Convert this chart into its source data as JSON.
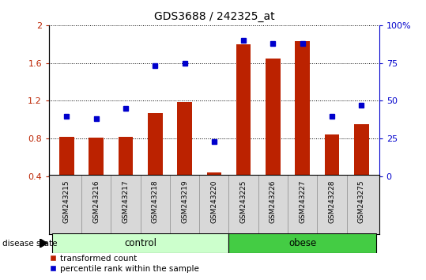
{
  "title": "GDS3688 / 242325_at",
  "samples": [
    "GSM243215",
    "GSM243216",
    "GSM243217",
    "GSM243218",
    "GSM243219",
    "GSM243220",
    "GSM243225",
    "GSM243226",
    "GSM243227",
    "GSM243228",
    "GSM243275"
  ],
  "red_values": [
    0.82,
    0.81,
    0.82,
    1.07,
    1.19,
    0.44,
    1.8,
    1.65,
    1.83,
    0.84,
    0.95
  ],
  "blue_percentile": [
    40,
    38,
    45,
    73,
    75,
    23,
    90,
    88,
    88,
    40,
    47
  ],
  "ylim_left": [
    0.4,
    2.0
  ],
  "ylim_right": [
    0,
    100
  ],
  "yticks_left": [
    0.4,
    0.8,
    1.2,
    1.6,
    2.0
  ],
  "ytick_labels_left": [
    "0.4",
    "0.8",
    "1.2",
    "1.6",
    "2"
  ],
  "yticks_right": [
    0,
    25,
    50,
    75,
    100
  ],
  "ytick_labels_right": [
    "0",
    "25",
    "50",
    "75",
    "100%"
  ],
  "bar_color": "#bb2200",
  "dot_color": "#0000cc",
  "bar_width": 0.5,
  "grid_color": "black",
  "bg_color": "#d8d8d8",
  "plot_bg": "#ffffff",
  "label_red": "transformed count",
  "label_blue": "percentile rank within the sample",
  "disease_state_label": "disease state",
  "ctrl_color": "#ccffcc",
  "obese_color": "#44cc44",
  "n_control": 6,
  "n_obese": 5
}
